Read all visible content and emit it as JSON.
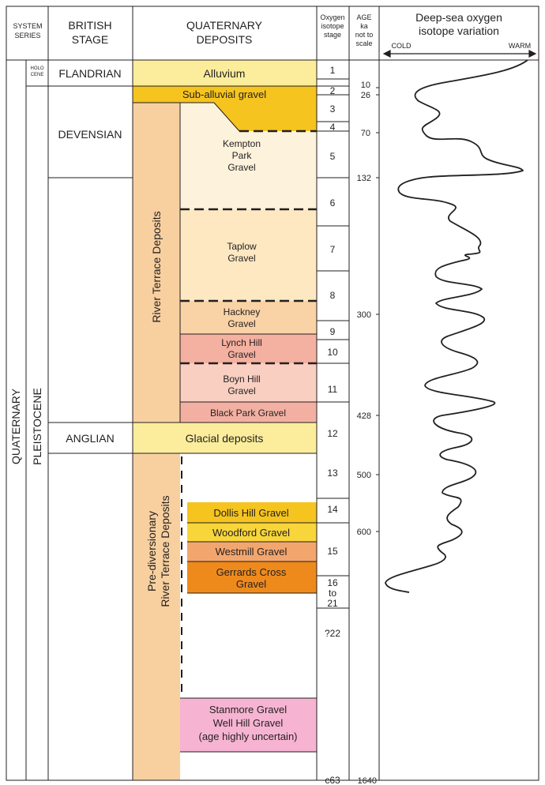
{
  "headers": {
    "system_series": [
      "SYSTEM",
      "SERIES"
    ],
    "british_stage": [
      "BRITISH",
      "STAGE"
    ],
    "quaternary_deposits": [
      "QUATERNARY",
      "DEPOSITS"
    ],
    "oxygen_isotope_stage": [
      "Oxygen",
      "isotope",
      "stage"
    ],
    "age": [
      "AGE",
      "ka",
      "not to",
      "scale"
    ],
    "deep_sea": [
      "Deep-sea oxygen",
      "isotope variation"
    ],
    "cold": "COLD",
    "warm": "WARM"
  },
  "system": "QUATERNARY",
  "series": {
    "holocene": [
      "HOLO",
      "CENE"
    ],
    "pleistocene": "PLEISTOCENE"
  },
  "stages": {
    "flandrian": "FLANDRIAN",
    "devensian": "DEVENSIAN",
    "anglian": "ANGLIAN"
  },
  "deposits": {
    "alluvium": "Alluvium",
    "sub_alluvial": "Sub-alluvial gravel",
    "kempton_park": [
      "Kempton",
      "Park",
      "Gravel"
    ],
    "taplow": [
      "Taplow",
      "Gravel"
    ],
    "hackney": [
      "Hackney",
      "Gravel"
    ],
    "lynch_hill": [
      "Lynch Hill",
      "Gravel"
    ],
    "boyn_hill": [
      "Boyn Hill",
      "Gravel"
    ],
    "black_park": "Black Park Gravel",
    "glacial": "Glacial deposits",
    "dollis_hill": "Dollis Hill Gravel",
    "woodford": "Woodford Gravel",
    "westmill": "Westmill Gravel",
    "gerrards_cross": [
      "Gerrards Cross",
      "Gravel"
    ],
    "stanmore": [
      "Stanmore Gravel",
      "Well Hill Gravel",
      "(age highly uncertain)"
    ]
  },
  "river_terrace_label": "River Terrace Deposits",
  "prediversionary_label": [
    "Pre-diversionary",
    "River Terrace Deposits"
  ],
  "isotope_stages": [
    "1",
    "2",
    "3",
    "4",
    "5",
    "6",
    "7",
    "8",
    "9",
    "10",
    "11",
    "12",
    "13",
    "14",
    "15",
    "16",
    "to",
    "21",
    "?22",
    "c63"
  ],
  "ages": [
    "10",
    "26",
    "70",
    "132",
    "300",
    "428",
    "500",
    "600",
    "1640"
  ],
  "colors": {
    "alluvium": "#fbed9c",
    "sub_alluvial": "#f6c41e",
    "kempton": "#fdf2dc",
    "taplow": "#fde8c2",
    "hackney": "#f9d2a6",
    "lynch_hill": "#f4b0a0",
    "boyn_hill": "#f9cfc1",
    "black_park": "#f3b0a2",
    "glacial": "#fbed9c",
    "terrace": "#f8d0a0",
    "dollis": "#f6c41e",
    "woodford": "#f8d53a",
    "westmill": "#f2a66e",
    "gerrards": "#ee8a1c",
    "stanmore": "#f6b4d2"
  },
  "chart_data": {
    "type": "line",
    "title": "Deep-sea oxygen isotope variation",
    "x_axis": [
      "COLD",
      "WARM"
    ],
    "y_axis": "AGE ka not to scale",
    "ages_ka": [
      10,
      26,
      70,
      132,
      300,
      428,
      500,
      600,
      1640
    ],
    "note": "Curve oscillates between cold and warm with depth (time)"
  }
}
